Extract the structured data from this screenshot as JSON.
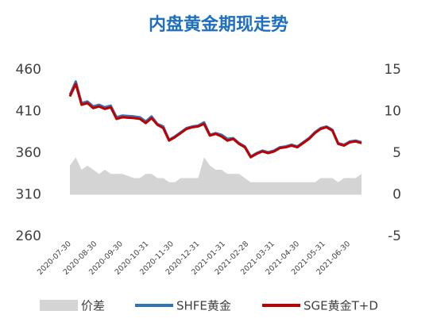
{
  "chart_data": {
    "type": "line",
    "title": "内盘黄金期现走势",
    "x": [
      "2020-07-30",
      "2020-08-06",
      "2020-08-13",
      "2020-08-20",
      "2020-08-27",
      "2020-09-03",
      "2020-09-10",
      "2020-09-17",
      "2020-09-24",
      "2020-10-01",
      "2020-10-15",
      "2020-10-22",
      "2020-10-29",
      "2020-11-05",
      "2020-11-12",
      "2020-11-19",
      "2020-11-26",
      "2020-12-03",
      "2020-12-10",
      "2020-12-17",
      "2020-12-24",
      "2020-12-31",
      "2021-01-07",
      "2021-01-14",
      "2021-01-21",
      "2021-01-28",
      "2021-02-04",
      "2021-02-11",
      "2021-02-18",
      "2021-02-25",
      "2021-03-04",
      "2021-03-11",
      "2021-03-18",
      "2021-03-25",
      "2021-04-01",
      "2021-04-08",
      "2021-04-15",
      "2021-04-22",
      "2021-04-29",
      "2021-05-06",
      "2021-05-13",
      "2021-05-20",
      "2021-05-27",
      "2021-06-03",
      "2021-06-10",
      "2021-06-17",
      "2021-06-24",
      "2021-07-01",
      "2021-07-08",
      "2021-07-15"
    ],
    "series": [
      {
        "name": "价差",
        "color": "#d4d4d4",
        "axis": "y2",
        "kind": "area",
        "values": [
          3.5,
          4.5,
          3,
          3.5,
          3,
          2.5,
          3,
          2.5,
          2.5,
          2.5,
          2,
          2,
          2.5,
          2.5,
          2,
          2,
          1.5,
          1.5,
          2,
          2,
          2,
          2,
          4.5,
          3.5,
          3,
          3,
          2.5,
          2.5,
          2.5,
          2,
          1.5,
          1.5,
          1.5,
          1.5,
          1.5,
          1.5,
          1.5,
          1.5,
          1.5,
          1.5,
          1.5,
          1.5,
          2,
          2,
          2,
          1.5,
          2,
          2,
          2,
          2.5
        ]
      },
      {
        "name": "SHFE黄金",
        "color": "#2e75b6",
        "kind": "line",
        "values": [
          430,
          446,
          420,
          422,
          416,
          418,
          415,
          417,
          403,
          405,
          404,
          403,
          398,
          404,
          395,
          392,
          376,
          380,
          385,
          390,
          392,
          393,
          397,
          382,
          384,
          382,
          377,
          378,
          372,
          368,
          356,
          360,
          363,
          361,
          363,
          367,
          368,
          370,
          368,
          373,
          378,
          385,
          390,
          392,
          388,
          372,
          370,
          374,
          375,
          373
        ]
      },
      {
        "name": "SGE黄金T+D",
        "color": "#c00000",
        "kind": "line",
        "values": [
          428,
          443,
          418,
          420,
          414,
          416,
          413,
          415,
          401,
          403,
          402,
          401,
          396,
          402,
          394,
          390,
          375,
          379,
          384,
          389,
          391,
          392,
          395,
          381,
          383,
          380,
          375,
          377,
          371,
          367,
          355,
          359,
          362,
          360,
          362,
          366,
          367,
          369,
          367,
          372,
          377,
          384,
          389,
          391,
          387,
          371,
          369,
          373,
          374,
          372
        ]
      }
    ],
    "xlim": [
      "2020-07-30",
      "2021-07-15"
    ],
    "xticks": [
      "2020-07-30",
      "2020-08-30",
      "2020-09-30",
      "2020-10-31",
      "2020-11-30",
      "2020-12-31",
      "2021-01-31",
      "2021-02-28",
      "2021-03-31",
      "2021-04-30",
      "2021-05-31",
      "2021-06-30"
    ],
    "ylim": [
      260,
      460
    ],
    "yticks": [
      260,
      310,
      360,
      410,
      460
    ],
    "y2lim": [
      -5,
      15
    ],
    "y2ticks": [
      -5,
      0,
      5,
      10,
      15
    ]
  }
}
